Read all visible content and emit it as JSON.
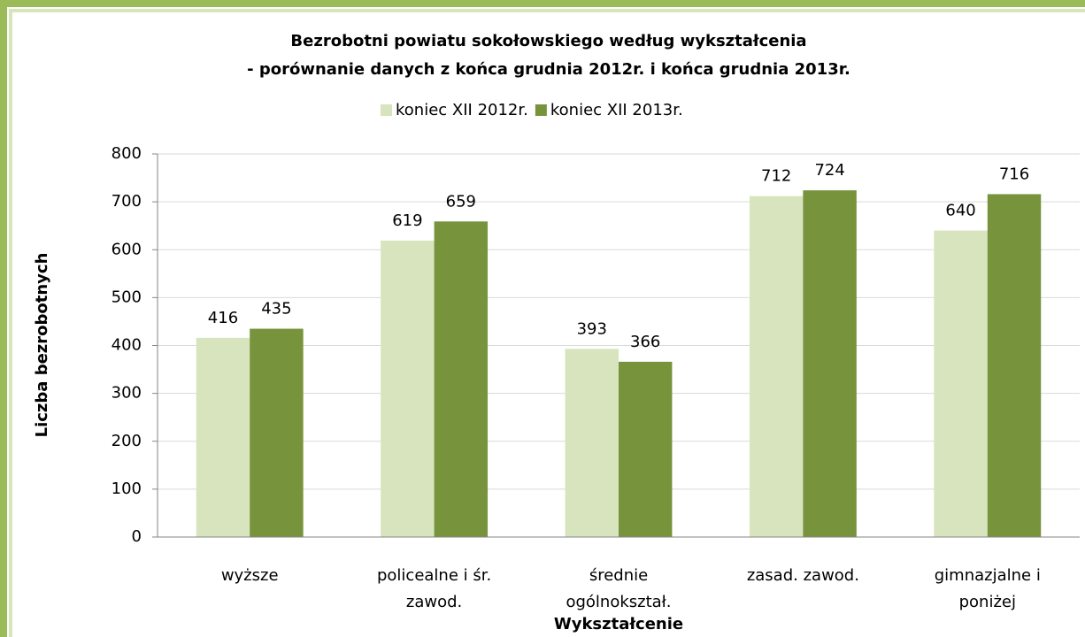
{
  "chart_data": {
    "type": "bar",
    "title": "Bezrobotni powiatu sokołowskiego według wykształcenia",
    "subtitle": "- porównanie danych z końca grudnia 2012r. i końca grudnia 2013r.",
    "x_label": "Wykształcenie",
    "y_label": "Liczba bezrobotnych",
    "categories": [
      "wyższe",
      "policealne i śr.\nzawod.",
      "średnie\nogólnokształ.",
      "zasad. zawod.",
      "gimnazjalne i\nponiżej"
    ],
    "series": [
      {
        "name": "koniec XII 2012r.",
        "color": "#d7e4bd",
        "values": [
          416,
          619,
          393,
          712,
          640
        ]
      },
      {
        "name": "koniec XII 2013r.",
        "color": "#77933c",
        "values": [
          435,
          659,
          366,
          724,
          716
        ]
      }
    ],
    "ylim": [
      0,
      800
    ],
    "yticks": [
      0,
      100,
      200,
      300,
      400,
      500,
      600,
      700,
      800
    ],
    "grid": true,
    "legend": "top"
  }
}
